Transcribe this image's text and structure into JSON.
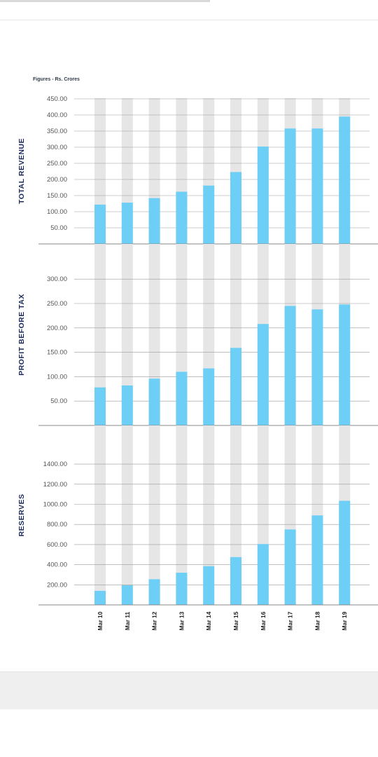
{
  "caption": "Figures - Rs. Crores",
  "colors": {
    "bar": "#6ecff6",
    "track": "#e6e6e6",
    "axis_label": "#1b2a5a",
    "tick": "#555555",
    "grid": "#9a9a9a"
  },
  "chart_data": [
    {
      "type": "bar",
      "ylabel": "TOTAL REVENUE",
      "categories": [
        "Mar 10",
        "Mar 11",
        "Mar 12",
        "Mar 13",
        "Mar 14",
        "Mar 15",
        "Mar 16",
        "Mar 17",
        "Mar 18",
        "Mar 19"
      ],
      "values": [
        122,
        128,
        142,
        162,
        181,
        223,
        302,
        358,
        358,
        395
      ],
      "yticks": [
        "450.00",
        "400.00",
        "350.00",
        "300.00",
        "250.00",
        "200.00",
        "150.00",
        "100.00",
        "50.00"
      ],
      "ylim": [
        0,
        450
      ],
      "grid": true
    },
    {
      "type": "bar",
      "ylabel": "PROFIT BEFORE TAX",
      "categories": [
        "Mar 10",
        "Mar 11",
        "Mar 12",
        "Mar 13",
        "Mar 14",
        "Mar 15",
        "Mar 16",
        "Mar 17",
        "Mar 18",
        "Mar 19"
      ],
      "values": [
        78,
        82,
        96,
        110,
        117,
        159,
        208,
        245,
        238,
        248
      ],
      "yticks": [
        "300.00",
        "250.00",
        "200.00",
        "150.00",
        "100.00",
        "50.00"
      ],
      "ylim": [
        0,
        300
      ],
      "grid": true
    },
    {
      "type": "bar",
      "ylabel": "RESERVES",
      "categories": [
        "Mar 10",
        "Mar 11",
        "Mar 12",
        "Mar 13",
        "Mar 14",
        "Mar 15",
        "Mar 16",
        "Mar 17",
        "Mar 18",
        "Mar 19"
      ],
      "values": [
        140,
        195,
        255,
        320,
        385,
        475,
        605,
        750,
        890,
        1035
      ],
      "yticks": [
        "1400.00",
        "1200.00",
        "1000.00",
        "800.00",
        "600.00",
        "400.00",
        "200.00"
      ],
      "ylim": [
        0,
        1400
      ],
      "grid": true
    }
  ]
}
